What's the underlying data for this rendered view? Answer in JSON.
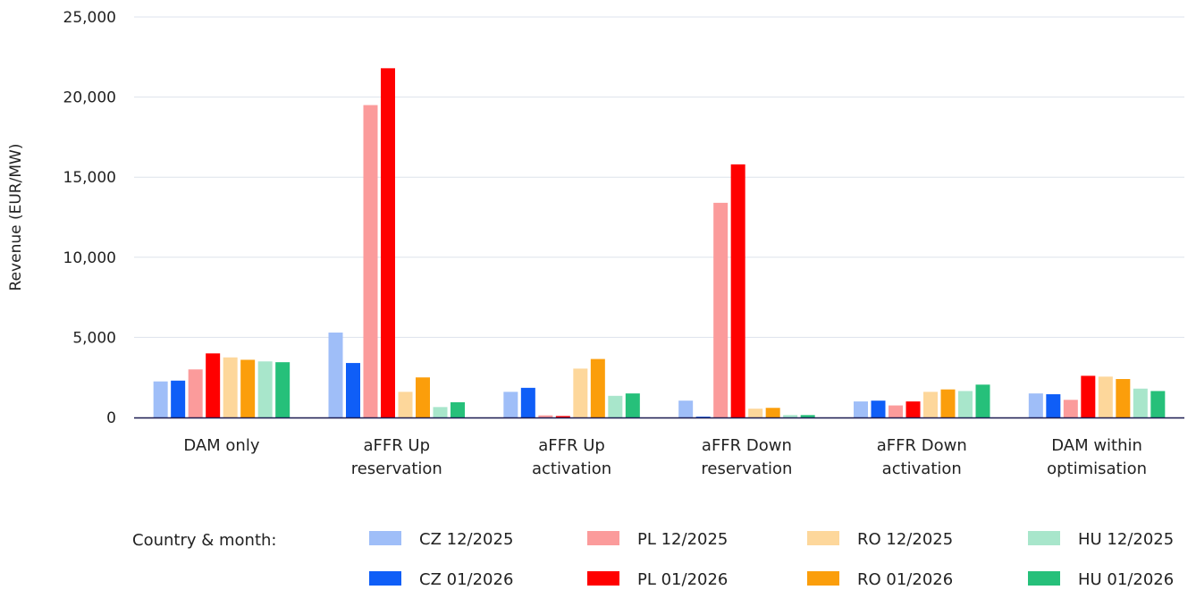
{
  "chart_data": {
    "type": "bar",
    "ylabel": "Revenue (EUR/MW)",
    "ylim": [
      0,
      25000
    ],
    "yticks": [
      0,
      5000,
      10000,
      15000,
      20000,
      25000
    ],
    "grid": true,
    "categories": [
      [
        "DAM only"
      ],
      [
        "aFFR Up",
        "reservation"
      ],
      [
        "aFFR Up",
        "activation"
      ],
      [
        "aFFR Down",
        "reservation"
      ],
      [
        "aFFR Down",
        "activation"
      ],
      [
        "DAM within",
        "optimisation"
      ]
    ],
    "legend_title": "Country & month:",
    "legend_position": "bottom",
    "series": [
      {
        "name": "CZ 12/2025",
        "color": "#9fbef8",
        "values": [
          2250,
          5300,
          1600,
          1050,
          1000,
          1500
        ]
      },
      {
        "name": "CZ 01/2026",
        "color": "#0f5ef7",
        "values": [
          2300,
          3400,
          1850,
          50,
          1050,
          1450
        ]
      },
      {
        "name": "PL 12/2025",
        "color": "#fb9b9b",
        "values": [
          3000,
          19500,
          130,
          13400,
          750,
          1100
        ]
      },
      {
        "name": "PL 01/2026",
        "color": "#ff0000",
        "values": [
          4000,
          21800,
          90,
          15800,
          1000,
          2600
        ]
      },
      {
        "name": "RO 12/2025",
        "color": "#fdd79b",
        "values": [
          3750,
          1600,
          3050,
          550,
          1600,
          2550
        ]
      },
      {
        "name": "RO 01/2026",
        "color": "#fb9e0b",
        "values": [
          3600,
          2500,
          3650,
          600,
          1750,
          2400
        ]
      },
      {
        "name": "HU 12/2025",
        "color": "#a8e6cb",
        "values": [
          3500,
          650,
          1350,
          150,
          1650,
          1800
        ]
      },
      {
        "name": "HU 01/2026",
        "color": "#26c07a",
        "values": [
          3450,
          950,
          1500,
          150,
          2050,
          1650
        ]
      }
    ]
  }
}
